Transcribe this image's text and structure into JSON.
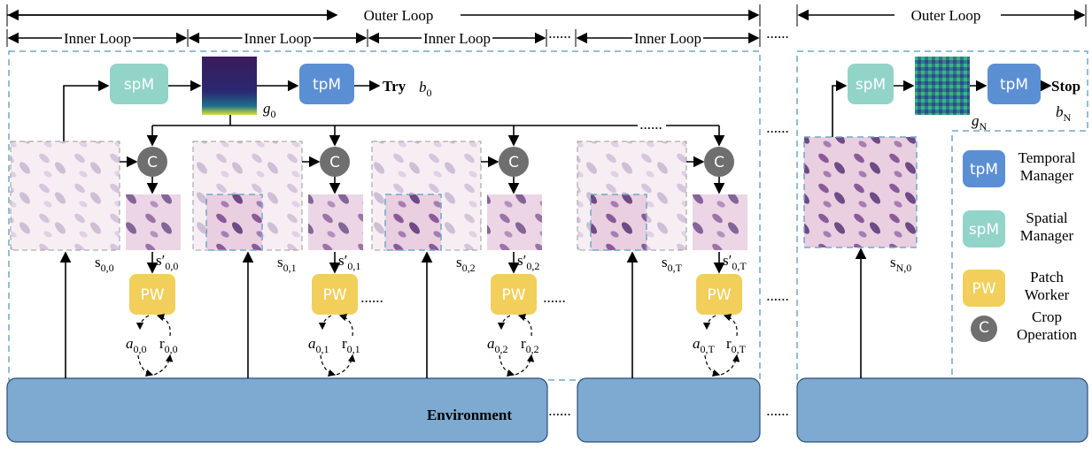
{
  "outer_loop": [
    "Outer Loop",
    "Outer Loop"
  ],
  "inner_loop": [
    "Inner Loop",
    "Inner Loop",
    "Inner Loop",
    "Inner Loop"
  ],
  "ellipsis": "......",
  "main": {
    "spm": "spM",
    "tpm": "tpM",
    "action": "Try",
    "b": {
      "base": "b",
      "sub": "0"
    },
    "g": {
      "base": "g",
      "sub": "0"
    }
  },
  "steps": [
    {
      "crop": "C",
      "state": {
        "base": "s",
        "sub": "0,0"
      },
      "patch": {
        "base": "s′",
        "sub": "0,0"
      },
      "worker": "PW",
      "action": {
        "base": "a",
        "sub": "0,0"
      },
      "reward": {
        "base": "r",
        "sub": "0,0"
      }
    },
    {
      "crop": "C",
      "state": {
        "base": "s",
        "sub": "0,1"
      },
      "patch": {
        "base": "s′",
        "sub": "0,1"
      },
      "worker": "PW",
      "action": {
        "base": "a",
        "sub": "0,1"
      },
      "reward": {
        "base": "r",
        "sub": "0,1"
      }
    },
    {
      "crop": "C",
      "state": {
        "base": "s",
        "sub": "0,2"
      },
      "patch": {
        "base": "s′",
        "sub": "0,2"
      },
      "worker": "PW",
      "action": {
        "base": "a",
        "sub": "0,2"
      },
      "reward": {
        "base": "r",
        "sub": "0,2"
      }
    },
    {
      "crop": "C",
      "state": {
        "base": "s",
        "sub": "0,T"
      },
      "patch": {
        "base": "s′",
        "sub": "0,T"
      },
      "worker": "PW",
      "action": {
        "base": "a",
        "sub": "0,T"
      },
      "reward": {
        "base": "r",
        "sub": "0,T"
      }
    }
  ],
  "environment": "Environment",
  "final": {
    "spm": "spM",
    "tpm": "tpM",
    "action": "Stop",
    "b": {
      "base": "b",
      "sub": "N"
    },
    "g": {
      "base": "g",
      "sub": "N"
    },
    "state": {
      "base": "s",
      "sub": "N,0"
    }
  },
  "legend": [
    {
      "icon": "tpM",
      "label": [
        "Temporal",
        "Manager"
      ]
    },
    {
      "icon": "spM",
      "label": [
        "Spatial",
        "Manager"
      ]
    },
    {
      "icon": "PW",
      "label": [
        "Patch",
        "Worker"
      ]
    },
    {
      "icon": "C",
      "label": [
        "Crop",
        "Operation"
      ]
    }
  ]
}
